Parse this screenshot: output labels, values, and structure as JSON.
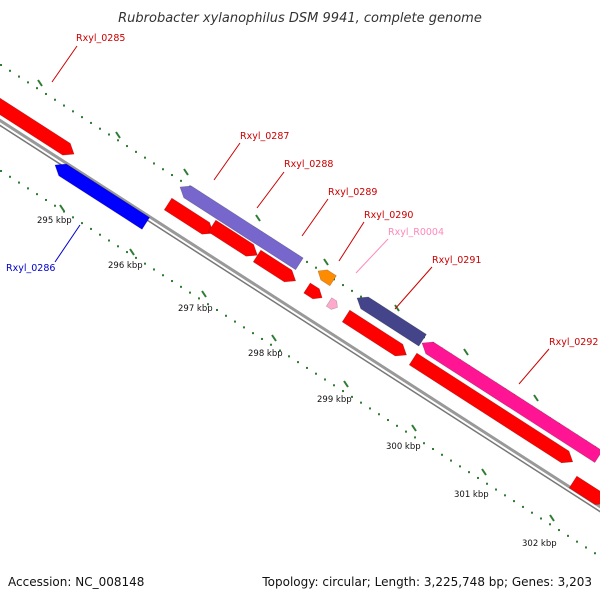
{
  "title": "Rubrobacter xylanophilus DSM 9941, complete genome",
  "footer": {
    "accession": "Accession: NC_008148",
    "topology": "Topology: circular; Length: 3,225,748 bp; Genes: 3,203"
  },
  "colors": {
    "forward_gene": "#ff0000",
    "reverse_gene": "#0000ff",
    "purple_gene": "#7766cc",
    "dark_purple_gene": "#44448a",
    "magenta_gene": "#ff1493",
    "orange_gene": "#ff8c00",
    "rna_gene": "#ffaacc",
    "tick_green": "#2e7d32",
    "backbone": "#888888"
  },
  "scale_labels": [
    "295 kbp",
    "296 kbp",
    "297 kbp",
    "298 kbp",
    "299 kbp",
    "300 kbp",
    "301 kbp",
    "302 kbp"
  ],
  "genes": [
    {
      "id": "Rxyl_0285",
      "color": "#ff0000",
      "label_color": "#cc0000"
    },
    {
      "id": "Rxyl_0286",
      "color": "#0000ff",
      "label_color": "#0000cc"
    },
    {
      "id": "Rxyl_0287",
      "color": "#7766cc",
      "label_color": "#cc0000"
    },
    {
      "id": "Rxyl_0288",
      "color": "#ff0000",
      "label_color": "#cc0000"
    },
    {
      "id": "Rxyl_0289",
      "color": "#ff0000",
      "label_color": "#cc0000"
    },
    {
      "id": "Rxyl_0290",
      "color": "#ff8c00",
      "label_color": "#cc0000"
    },
    {
      "id": "Rxyl_R0004",
      "color": "#ffaacc",
      "label_color": "#ff88bb"
    },
    {
      "id": "Rxyl_0291",
      "color": "#44448a",
      "label_color": "#cc0000"
    },
    {
      "id": "Rxyl_0292",
      "color": "#ff1493",
      "label_color": "#cc0000"
    }
  ]
}
